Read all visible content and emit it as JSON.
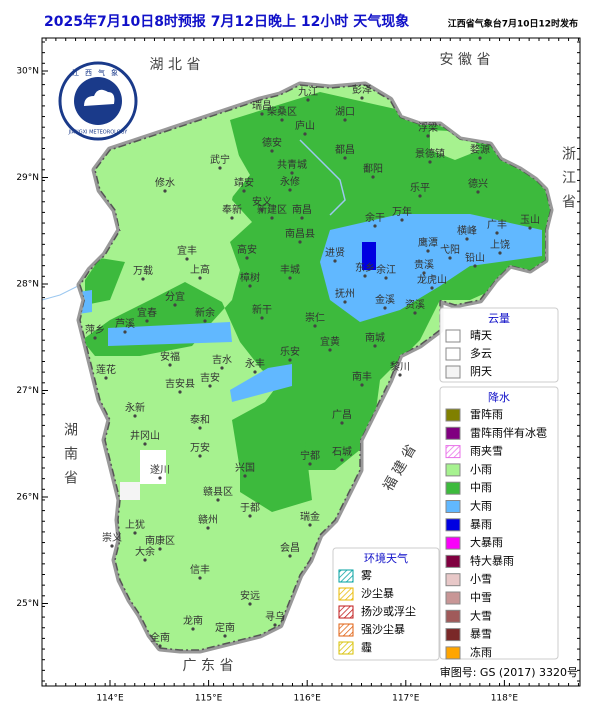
{
  "header": {
    "title": "2025年7月10日8时预报 7月12日晚上 12小时  天气现象",
    "publisher": "江西省气象台7月10日12时发布"
  },
  "axes": {
    "lat_ticks": [
      {
        "value": 30,
        "label": "30°N"
      },
      {
        "value": 29,
        "label": "29°N"
      },
      {
        "value": 28,
        "label": "28°N"
      },
      {
        "value": 27,
        "label": "27°N"
      },
      {
        "value": 26,
        "label": "26°N"
      },
      {
        "value": 25,
        "label": "25°N"
      }
    ],
    "lon_ticks": [
      {
        "value": 114,
        "label": "114°E"
      },
      {
        "value": 115,
        "label": "115°E"
      },
      {
        "value": 116,
        "label": "116°E"
      },
      {
        "value": 117,
        "label": "117°E"
      },
      {
        "value": 118,
        "label": "118°E"
      }
    ]
  },
  "logo": {
    "name": "江西气象",
    "english": "JIANGXI METEOROLOGY"
  },
  "provinces": [
    "湖 北 省",
    "安 徽 省",
    "浙江省",
    "湖南省",
    "福 建 省",
    "广 东 省"
  ],
  "cities": [
    "九江",
    "彭泽",
    "瑞昌",
    "柴桑区",
    "庐山",
    "湖口",
    "都昌",
    "鄱阳",
    "浮梁",
    "景德镇",
    "婺源",
    "德兴",
    "乐平",
    "万年",
    "余干",
    "德安",
    "共青城",
    "永修",
    "武宁",
    "修水",
    "靖安",
    "安义",
    "奉新",
    "新建区",
    "南昌",
    "南昌县",
    "进贤",
    "东乡",
    "余江",
    "鹰潭",
    "贵溪",
    "龙虎山",
    "弋阳",
    "横峰",
    "铅山",
    "上饶",
    "广丰",
    "玉山",
    "抚州",
    "金溪",
    "资溪",
    "宜丰",
    "上高",
    "高安",
    "樟树",
    "丰城",
    "万载",
    "宜春",
    "分宜",
    "新余",
    "芦溪",
    "萍乡",
    "莲花",
    "安福",
    "吉安县",
    "吉安",
    "吉水",
    "新干",
    "崇仁",
    "宜黄",
    "乐安",
    "永丰",
    "南城",
    "南丰",
    "黎川",
    "广昌",
    "永新",
    "井冈山",
    "泰和",
    "万安",
    "遂川",
    "兴国",
    "宁都",
    "石城",
    "赣县区",
    "赣州",
    "于都",
    "瑞金",
    "会昌",
    "上犹",
    "崇义",
    "南康区",
    "大余",
    "信丰",
    "安远",
    "寻乌",
    "龙南",
    "全南",
    "定南"
  ],
  "legend": {
    "cloud": {
      "title": "云量",
      "items": [
        {
          "label": "晴天",
          "color": "#ffffff"
        },
        {
          "label": "多云",
          "color": "#ffffff"
        },
        {
          "label": "阴天",
          "color": "#f4f4f4"
        }
      ]
    },
    "precipitation": {
      "title": "降水",
      "items": [
        {
          "label": "雷阵雨",
          "color": "#808000"
        },
        {
          "label": "雷阵雨伴有冰雹",
          "color": "#800080"
        },
        {
          "label": "雨夹雪",
          "color": "#e870e8",
          "hatch": true
        },
        {
          "label": "小雨",
          "color": "#a6f28f"
        },
        {
          "label": "中雨",
          "color": "#3dba3d"
        },
        {
          "label": "大雨",
          "color": "#61b8ff"
        },
        {
          "label": "暴雨",
          "color": "#0000e1"
        },
        {
          "label": "大暴雨",
          "color": "#fa00fa"
        },
        {
          "label": "特大暴雨",
          "color": "#800040"
        },
        {
          "label": "小雪",
          "color": "#e8c8c8"
        },
        {
          "label": "中雪",
          "color": "#c89696"
        },
        {
          "label": "大雪",
          "color": "#a05a5a"
        },
        {
          "label": "暴雪",
          "color": "#7a2828"
        },
        {
          "label": "冻雨",
          "color": "#ffa500"
        }
      ]
    },
    "environment": {
      "title": "环境天气",
      "items": [
        {
          "label": "雾",
          "color": "#00a0a0",
          "hatch": true
        },
        {
          "label": "沙尘暴",
          "color": "#e8b800",
          "hatch": true
        },
        {
          "label": "扬沙或浮尘",
          "color": "#c01818",
          "hatch": true
        },
        {
          "label": "强沙尘暴",
          "color": "#e06010",
          "hatch": true
        },
        {
          "label": "霾",
          "color": "#d8c000",
          "hatch": true
        }
      ]
    }
  },
  "footer": {
    "review": "审图号: GS (2017) 3320号"
  }
}
